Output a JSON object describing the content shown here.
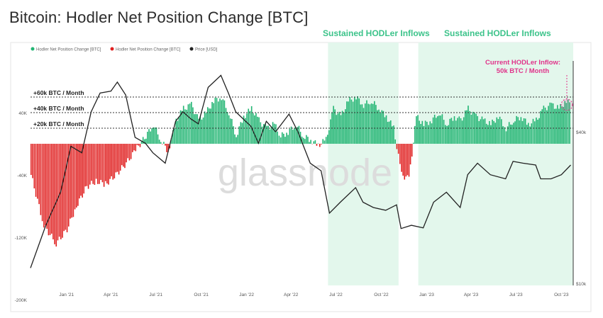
{
  "chart_data": {
    "type": "bar+line",
    "title": "Bitcoin: Hodler Net Position Change [BTC]",
    "legend": [
      {
        "label": "Hodler Net Position Change [BTC]",
        "color": "#22b573"
      },
      {
        "label": "Hodler Net Position Change [BTC]",
        "color": "#e02020"
      },
      {
        "label": "Price [USD]",
        "color": "#222222"
      }
    ],
    "legend_position": "top-left",
    "watermark": "glassnode",
    "x_range": [
      "2020-10-20",
      "2023-10-25"
    ],
    "x_ticks": [
      "Jan '21",
      "Apr '21",
      "Jul '21",
      "Oct '21",
      "Jan '22",
      "Apr '22",
      "Jul '22",
      "Oct '22",
      "Jan '23",
      "Apr '23",
      "Jul '23",
      "Oct '23"
    ],
    "y_left": {
      "ticks": [
        "40K",
        "-40K",
        "-120K",
        "-200K"
      ],
      "range": [
        -200000,
        100000
      ]
    },
    "y_right": {
      "ticks": [
        "$40k",
        "$10k"
      ],
      "scale": "log",
      "range": [
        8000,
        80000
      ]
    },
    "reference_lines": [
      {
        "label": "+60k BTC / Month",
        "value": 60000
      },
      {
        "label": "+40k BTC / Month",
        "value": 40000
      },
      {
        "label": "+20k BTC / Month",
        "value": 20000
      }
    ],
    "shaded_regions": [
      {
        "label": "Sustained HODLer Inflows",
        "start": "2022-06-15",
        "end": "2022-11-05"
      },
      {
        "label": "Sustained HODLer Inflows",
        "start": "2022-12-15",
        "end": "2023-10-25"
      }
    ],
    "annotation": {
      "text_line1": "Current HODLer Inflow:",
      "text_line2": "50k BTC / Month",
      "value": 50000
    },
    "series": [
      {
        "name": "Hodler Net Position Change [BTC]",
        "kind": "bars",
        "x": [
          "2020-10-20",
          "2020-11-15",
          "2020-12-10",
          "2021-01-01",
          "2021-01-20",
          "2021-02-10",
          "2021-03-01",
          "2021-03-20",
          "2021-04-10",
          "2021-05-01",
          "2021-05-20",
          "2021-06-10",
          "2021-06-25",
          "2021-07-10",
          "2021-07-25",
          "2021-08-10",
          "2021-08-25",
          "2021-09-10",
          "2021-09-25",
          "2021-10-10",
          "2021-10-25",
          "2021-11-10",
          "2021-11-25",
          "2021-12-10",
          "2021-12-25",
          "2022-01-10",
          "2022-01-25",
          "2022-02-10",
          "2022-02-25",
          "2022-03-10",
          "2022-03-25",
          "2022-04-10",
          "2022-04-25",
          "2022-05-10",
          "2022-05-25",
          "2022-06-10",
          "2022-06-25",
          "2022-07-10",
          "2022-07-25",
          "2022-08-10",
          "2022-08-25",
          "2022-09-10",
          "2022-09-25",
          "2022-10-10",
          "2022-10-25",
          "2022-11-10",
          "2022-11-25",
          "2022-12-10",
          "2022-12-25",
          "2023-01-10",
          "2023-01-25",
          "2023-02-10",
          "2023-02-25",
          "2023-03-10",
          "2023-03-25",
          "2023-04-10",
          "2023-04-25",
          "2023-05-10",
          "2023-05-25",
          "2023-06-10",
          "2023-06-25",
          "2023-07-10",
          "2023-07-25",
          "2023-08-10",
          "2023-08-25",
          "2023-09-10",
          "2023-09-25",
          "2023-10-10",
          "2023-10-20"
        ],
        "values": [
          -40000,
          -105000,
          -128000,
          -110000,
          -80000,
          -55000,
          -48000,
          -52000,
          -40000,
          -25000,
          -8000,
          10000,
          25000,
          5000,
          -10000,
          30000,
          45000,
          50000,
          30000,
          40000,
          55000,
          60000,
          40000,
          10000,
          35000,
          45000,
          30000,
          20000,
          25000,
          10000,
          15000,
          25000,
          10000,
          5000,
          -2000,
          5000,
          45000,
          35000,
          55000,
          60000,
          50000,
          55000,
          45000,
          35000,
          20000,
          -40000,
          -45000,
          35000,
          25000,
          30000,
          40000,
          25000,
          35000,
          30000,
          45000,
          35000,
          30000,
          25000,
          35000,
          20000,
          30000,
          35000,
          25000,
          30000,
          45000,
          50000,
          45000,
          55000,
          50000
        ]
      },
      {
        "name": "Price [USD]",
        "kind": "line",
        "x": [
          "2020-10-20",
          "2020-11-20",
          "2020-12-20",
          "2021-01-10",
          "2021-02-01",
          "2021-02-20",
          "2021-03-10",
          "2021-04-01",
          "2021-04-14",
          "2021-05-01",
          "2021-05-20",
          "2021-06-10",
          "2021-06-25",
          "2021-07-20",
          "2021-08-10",
          "2021-08-25",
          "2021-09-10",
          "2021-09-25",
          "2021-10-15",
          "2021-11-10",
          "2021-11-25",
          "2021-12-10",
          "2022-01-10",
          "2022-01-25",
          "2022-02-10",
          "2022-03-01",
          "2022-03-28",
          "2022-04-15",
          "2022-05-10",
          "2022-06-01",
          "2022-06-18",
          "2022-07-10",
          "2022-08-10",
          "2022-08-25",
          "2022-09-15",
          "2022-10-10",
          "2022-11-01",
          "2022-11-10",
          "2022-12-01",
          "2022-12-25",
          "2023-01-15",
          "2023-02-10",
          "2023-03-10",
          "2023-03-25",
          "2023-04-14",
          "2023-05-10",
          "2023-06-10",
          "2023-06-25",
          "2023-07-15",
          "2023-08-10",
          "2023-08-20",
          "2023-09-10",
          "2023-10-01",
          "2023-10-20"
        ],
        "values": [
          11500,
          17000,
          23000,
          35000,
          33000,
          48000,
          57000,
          58000,
          63000,
          56000,
          38000,
          36000,
          33000,
          30000,
          44000,
          48000,
          45000,
          43000,
          60000,
          67000,
          57000,
          48000,
          42000,
          36000,
          44000,
          40000,
          47000,
          40000,
          30000,
          28000,
          19000,
          21000,
          24000,
          21000,
          20000,
          19500,
          20500,
          16500,
          17000,
          16600,
          21000,
          23000,
          20000,
          27000,
          30000,
          27000,
          26000,
          30500,
          30000,
          29500,
          26000,
          26000,
          27000,
          29500
        ]
      }
    ]
  }
}
